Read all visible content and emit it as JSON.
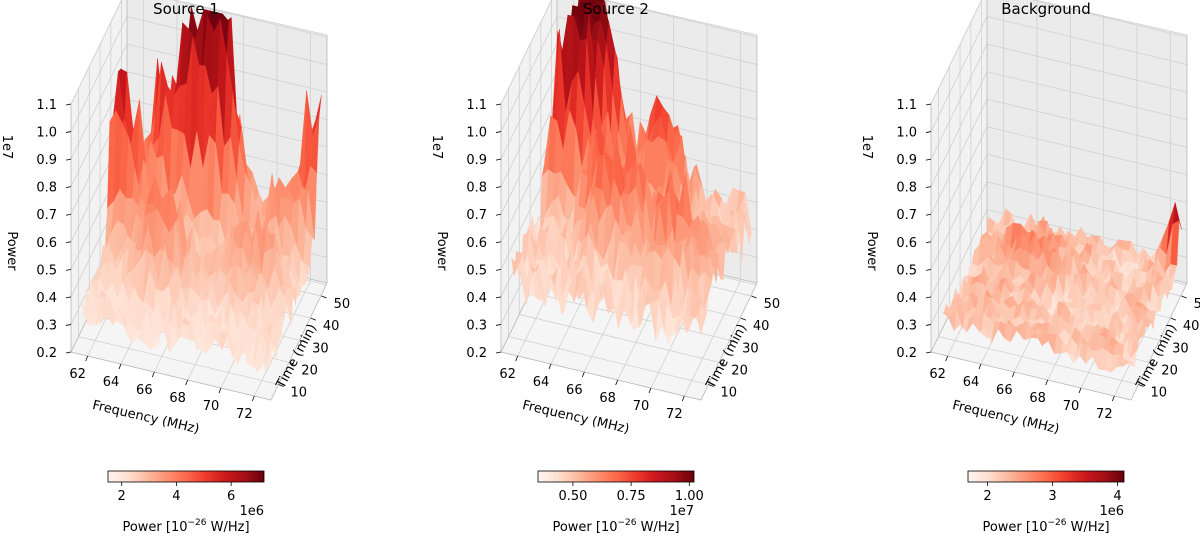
{
  "chart_data": [
    {
      "type": "surface3d",
      "title": "Source 1",
      "xlabel": "Frequency (MHz)",
      "ylabel": "Time (min)",
      "zlabel": "Power",
      "z_offset_label": "1e7",
      "x_ticks": [
        "62",
        "64",
        "66",
        "68",
        "70",
        "72"
      ],
      "y_ticks": [
        "10",
        "20",
        "30",
        "40",
        "50"
      ],
      "z_ticks": [
        "0.2",
        "0.3",
        "0.4",
        "0.5",
        "0.6",
        "0.7",
        "0.8",
        "0.9",
        "1.0",
        "1.1"
      ],
      "xlim": [
        61,
        73
      ],
      "ylim": [
        3,
        55
      ],
      "zlim": [
        0.2,
        1.1
      ],
      "colormap": "Reds",
      "colorbar": {
        "ticks": [
          "2",
          "4",
          "6"
        ],
        "tick_values": [
          2,
          4,
          6
        ],
        "range": [
          1.5,
          7.2
        ],
        "offset": "1e6",
        "label": "Power [10$^{-26}$ W/Hz]",
        "label_main": "Power [10",
        "label_sup": "−26",
        "label_tail": " W/Hz]"
      },
      "peaks": [
        {
          "f": 62.0,
          "t": 35,
          "z": 0.55,
          "w": 1.6
        },
        {
          "f": 63.8,
          "t": 46,
          "z": 0.52,
          "w": 1.4
        },
        {
          "f": 66.0,
          "t": 47,
          "z": 0.62,
          "w": 1.6
        },
        {
          "f": 67.3,
          "t": 49,
          "z": 0.5,
          "w": 1.5
        },
        {
          "f": 65.0,
          "t": 25,
          "z": 0.3,
          "w": 1.8
        },
        {
          "f": 70.0,
          "t": 30,
          "z": 0.25,
          "w": 2.0
        },
        {
          "f": 72.5,
          "t": 52,
          "z": 0.5,
          "w": 1.0
        },
        {
          "f": 71.0,
          "t": 45,
          "z": 0.28,
          "w": 1.5
        }
      ],
      "base": 0.33,
      "noise": 0.07
    },
    {
      "type": "surface3d",
      "title": "Source 2",
      "xlabel": "Frequency (MHz)",
      "ylabel": "Time (min)",
      "zlabel": "Power",
      "z_offset_label": "1e7",
      "x_ticks": [
        "62",
        "64",
        "66",
        "68",
        "70",
        "72"
      ],
      "y_ticks": [
        "10",
        "20",
        "30",
        "40",
        "50"
      ],
      "z_ticks": [
        "0.2",
        "0.3",
        "0.4",
        "0.5",
        "0.6",
        "0.7",
        "0.8",
        "0.9",
        "1.0",
        "1.1"
      ],
      "xlim": [
        61,
        73
      ],
      "ylim": [
        3,
        55
      ],
      "zlim": [
        0.2,
        1.1
      ],
      "colormap": "Reds",
      "colorbar": {
        "ticks": [
          "0.50",
          "0.75",
          "1.00"
        ],
        "tick_values": [
          0.5,
          0.75,
          1.0
        ],
        "range": [
          0.35,
          1.02
        ],
        "offset": "1e7",
        "label": "Power [10$^{-26}$ W/Hz]",
        "label_main": "Power [10",
        "label_sup": "−26",
        "label_tail": " W/Hz]"
      },
      "peaks": [
        {
          "f": 63.5,
          "t": 50,
          "z": 0.85,
          "w": 1.8
        },
        {
          "f": 62.8,
          "t": 40,
          "z": 0.55,
          "w": 1.5
        },
        {
          "f": 66.0,
          "t": 30,
          "z": 0.35,
          "w": 2.0
        },
        {
          "f": 68.0,
          "t": 45,
          "z": 0.35,
          "w": 1.8
        },
        {
          "f": 70.0,
          "t": 25,
          "z": 0.25,
          "w": 2.0
        }
      ],
      "base": 0.45,
      "noise": 0.1
    },
    {
      "type": "surface3d",
      "title": "Background",
      "xlabel": "Frequency (MHz)",
      "ylabel": "Time (min)",
      "zlabel": "Power",
      "z_offset_label": "1e7",
      "x_ticks": [
        "62",
        "64",
        "66",
        "68",
        "70",
        "72"
      ],
      "y_ticks": [
        "10",
        "20",
        "30",
        "40",
        "50"
      ],
      "z_ticks": [
        "0.2",
        "0.3",
        "0.4",
        "0.5",
        "0.6",
        "0.7",
        "0.8",
        "0.9",
        "1.0",
        "1.1"
      ],
      "xlim": [
        61,
        73
      ],
      "ylim": [
        3,
        55
      ],
      "zlim": [
        0.2,
        1.1
      ],
      "colormap": "Reds",
      "colorbar": {
        "ticks": [
          "2",
          "3",
          "4"
        ],
        "tick_values": [
          2,
          3,
          4
        ],
        "range": [
          1.7,
          4.1
        ],
        "offset": "1e6",
        "label": "Power [10$^{-26}$ W/Hz]",
        "label_main": "Power [10",
        "label_sup": "−26",
        "label_tail": " W/Hz]"
      },
      "peaks": [
        {
          "f": 72.8,
          "t": 53,
          "z": 0.18,
          "w": 0.9
        },
        {
          "f": 64.5,
          "t": 40,
          "z": 0.06,
          "w": 2.0
        }
      ],
      "base": 0.3,
      "noise": 0.04
    }
  ]
}
